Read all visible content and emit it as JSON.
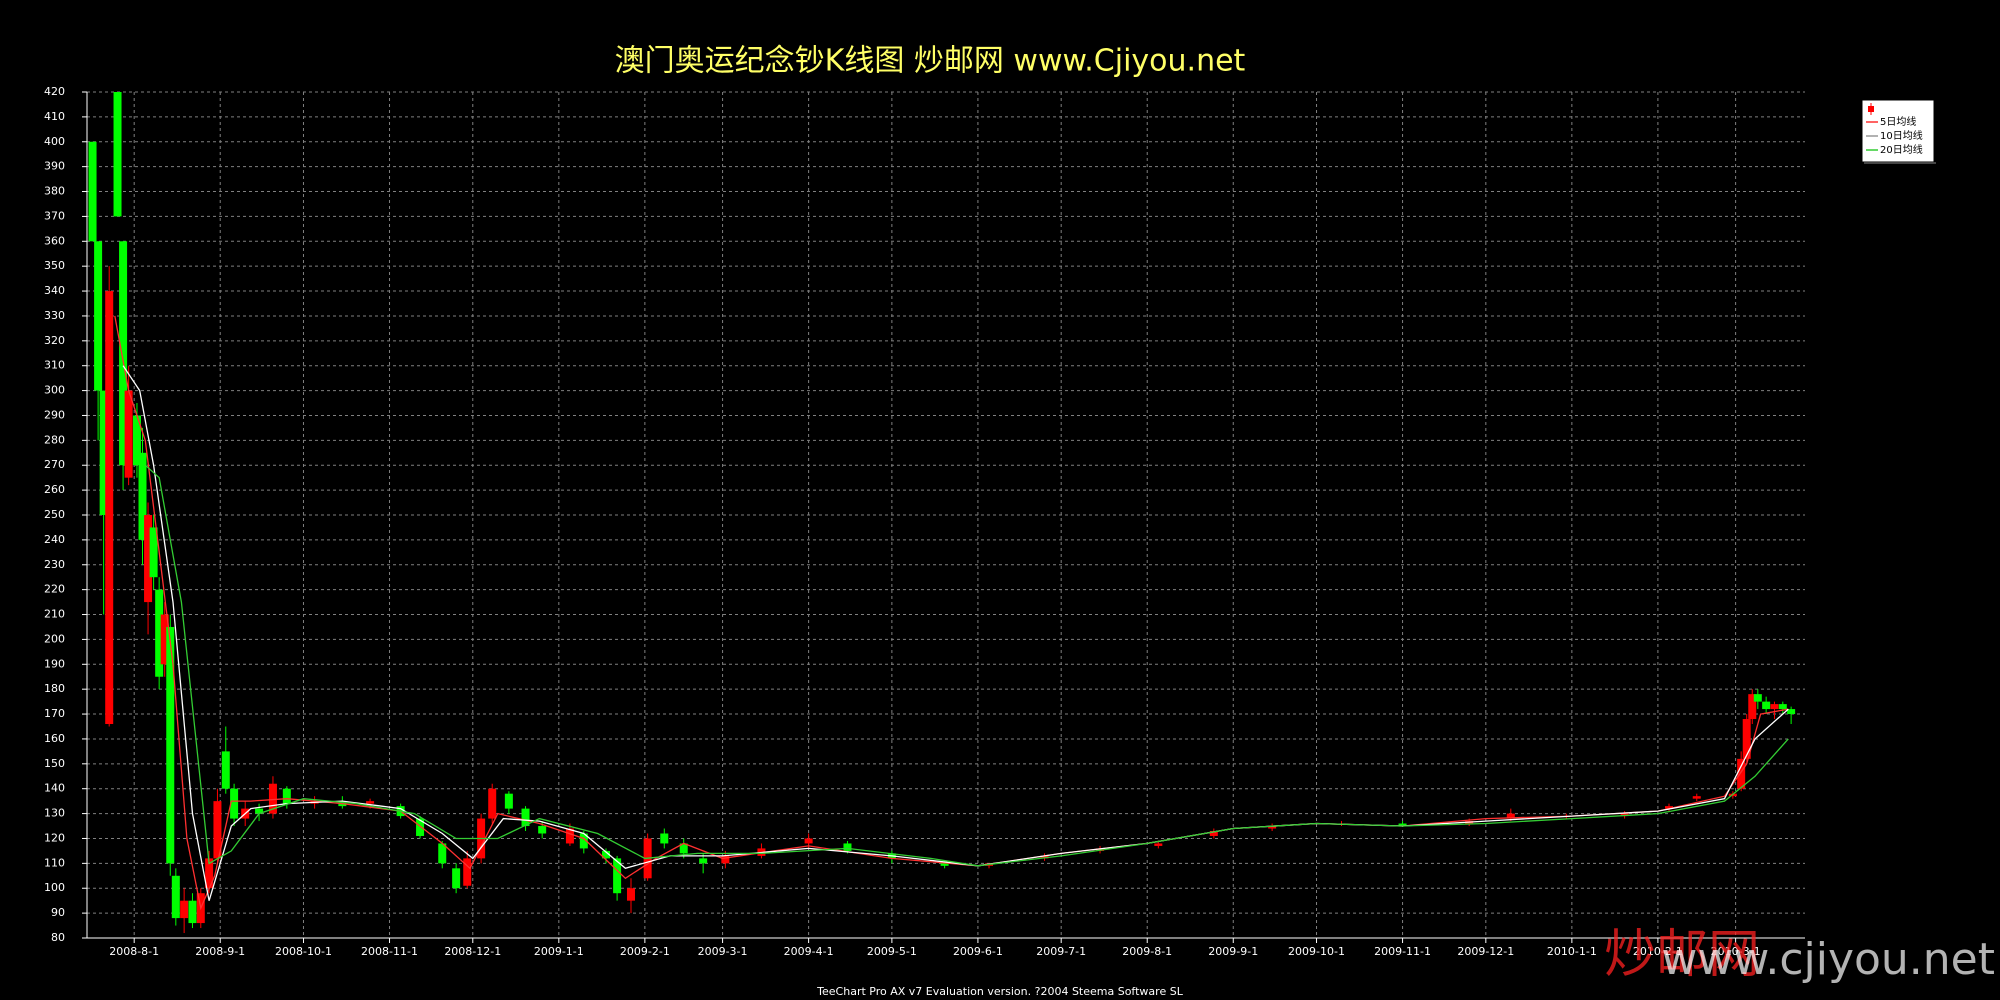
{
  "chart_data": {
    "type": "candlestick",
    "title": "澳门奥运纪念钞K线图  炒邮网 www.Cjiyou.net",
    "xlim": [
      "2008-7-15",
      "2010-3-26"
    ],
    "xticks": [
      "2008-8-1",
      "2008-9-1",
      "2008-10-1",
      "2008-11-1",
      "2008-12-1",
      "2009-1-1",
      "2009-2-1",
      "2009-3-1",
      "2009-4-1",
      "2009-5-1",
      "2009-6-1",
      "2009-7-1",
      "2009-8-1",
      "2009-9-1",
      "2009-10-1",
      "2009-11-1",
      "2009-12-1",
      "2010-1-1",
      "2010-2-1",
      "2010-3-1"
    ],
    "ylim": [
      80,
      420
    ],
    "yticks": [
      80,
      90,
      100,
      110,
      120,
      130,
      140,
      150,
      160,
      170,
      180,
      190,
      200,
      210,
      220,
      230,
      240,
      250,
      260,
      270,
      280,
      290,
      300,
      310,
      320,
      330,
      340,
      350,
      360,
      370,
      380,
      390,
      400,
      410,
      420
    ],
    "grid": true,
    "legend": "top-right",
    "up_color": "#ff0000",
    "down_color": "#00ff00",
    "candles": {
      "x": [
        "2008-7-17",
        "2008-7-19",
        "2008-7-21",
        "2008-7-23",
        "2008-7-26",
        "2008-7-28",
        "2008-7-30",
        "2008-8-2",
        "2008-8-4",
        "2008-8-6",
        "2008-8-8",
        "2008-8-10",
        "2008-8-12",
        "2008-8-14",
        "2008-8-16",
        "2008-8-19",
        "2008-8-22",
        "2008-8-25",
        "2008-8-28",
        "2008-8-31",
        "2008-9-3",
        "2008-9-6",
        "2008-9-10",
        "2008-9-15",
        "2008-9-20",
        "2008-9-25",
        "2008-10-5",
        "2008-10-15",
        "2008-10-25",
        "2008-11-5",
        "2008-11-12",
        "2008-11-20",
        "2008-11-25",
        "2008-11-29",
        "2008-12-4",
        "2008-12-8",
        "2008-12-14",
        "2008-12-20",
        "2008-12-26",
        "2009-1-5",
        "2009-1-10",
        "2009-1-18",
        "2009-1-22",
        "2009-1-27",
        "2009-2-2",
        "2009-2-8",
        "2009-2-15",
        "2009-2-22",
        "2009-3-2",
        "2009-3-15",
        "2009-4-1",
        "2009-4-15",
        "2009-5-1",
        "2009-5-20",
        "2009-6-5",
        "2009-6-25",
        "2009-7-15",
        "2009-8-5",
        "2009-8-25",
        "2009-9-15",
        "2009-10-10",
        "2009-11-1",
        "2009-11-25",
        "2009-12-10",
        "2009-12-30",
        "2010-1-20",
        "2010-2-5",
        "2010-2-15",
        "2010-2-28",
        "2010-3-3",
        "2010-3-5",
        "2010-3-7",
        "2010-3-9",
        "2010-3-12",
        "2010-3-15",
        "2010-3-18",
        "2010-3-21"
      ],
      "open": [
        400,
        360,
        300,
        166,
        420,
        360,
        265,
        290,
        275,
        215,
        245,
        220,
        190,
        205,
        105,
        88,
        95,
        86,
        100,
        112,
        155,
        140,
        128,
        132,
        130,
        140,
        134,
        135,
        134,
        133,
        128,
        118,
        108,
        101,
        112,
        128,
        138,
        132,
        125,
        118,
        122,
        115,
        112,
        95,
        104,
        122,
        118,
        112,
        110,
        113,
        118,
        118,
        114,
        110,
        109,
        112,
        115,
        117,
        121,
        124,
        126,
        126,
        126,
        128,
        129,
        129,
        132,
        136,
        137,
        140,
        152,
        168,
        178,
        175,
        172,
        174,
        172
      ],
      "high": [
        400,
        360,
        300,
        350,
        420,
        360,
        310,
        295,
        285,
        255,
        250,
        225,
        215,
        210,
        108,
        100,
        98,
        100,
        115,
        140,
        165,
        142,
        135,
        134,
        145,
        141,
        137,
        137,
        136,
        134,
        129,
        119,
        110,
        115,
        130,
        142,
        139,
        133,
        127,
        126,
        123,
        116,
        113,
        104,
        122,
        124,
        120,
        114,
        115,
        118,
        122,
        119,
        115,
        111,
        110,
        114,
        117,
        119,
        124,
        126,
        127,
        127,
        128,
        132,
        130,
        131,
        134,
        138,
        139,
        155,
        170,
        180,
        180,
        177,
        175,
        175,
        173
      ],
      "low": [
        360,
        280,
        210,
        165,
        370,
        260,
        262,
        265,
        230,
        202,
        220,
        180,
        185,
        105,
        85,
        82,
        84,
        84,
        98,
        110,
        138,
        125,
        125,
        127,
        128,
        132,
        132,
        132,
        132,
        128,
        120,
        108,
        98,
        100,
        110,
        126,
        130,
        123,
        120,
        117,
        114,
        110,
        95,
        90,
        103,
        116,
        112,
        106,
        108,
        112,
        116,
        114,
        110,
        108,
        108,
        111,
        114,
        116,
        120,
        123,
        125,
        125,
        125,
        127,
        128,
        128,
        131,
        135,
        136,
        139,
        150,
        166,
        172,
        170,
        168,
        170,
        166
      ],
      "close": [
        360,
        300,
        250,
        340,
        370,
        270,
        300,
        270,
        240,
        250,
        225,
        185,
        210,
        110,
        88,
        95,
        86,
        98,
        112,
        135,
        140,
        128,
        132,
        130,
        142,
        134,
        135,
        133,
        135,
        129,
        121,
        110,
        100,
        112,
        128,
        140,
        132,
        125,
        122,
        124,
        116,
        112,
        98,
        100,
        120,
        118,
        114,
        110,
        113,
        116,
        120,
        115,
        112,
        109,
        110,
        113,
        116,
        118,
        123,
        125,
        126,
        125,
        127,
        130,
        129,
        130,
        133,
        137,
        138,
        152,
        168,
        178,
        175,
        172,
        174,
        172,
        170
      ]
    },
    "series": [
      {
        "name": "5日均线",
        "color": "#ff3030",
        "x": [
          "2008-7-25",
          "2008-7-30",
          "2008-8-5",
          "2008-8-10",
          "2008-8-15",
          "2008-8-20",
          "2008-8-25",
          "2008-8-30",
          "2008-9-5",
          "2008-9-12",
          "2008-9-25",
          "2008-10-15",
          "2008-11-5",
          "2008-11-20",
          "2008-11-30",
          "2008-12-10",
          "2008-12-25",
          "2009-1-10",
          "2009-1-25",
          "2009-2-5",
          "2009-2-15",
          "2009-3-1",
          "2009-4-1",
          "2009-5-1",
          "2009-6-1",
          "2009-7-1",
          "2009-8-1",
          "2009-9-1",
          "2009-10-1",
          "2009-11-1",
          "2009-12-1",
          "2010-1-1",
          "2010-2-1",
          "2010-2-25",
          "2010-3-5",
          "2010-3-10",
          "2010-3-20"
        ],
        "values": [
          330,
          300,
          280,
          235,
          190,
          120,
          92,
          105,
          135,
          135,
          136,
          134,
          131,
          118,
          108,
          130,
          126,
          120,
          104,
          112,
          118,
          112,
          117,
          112,
          109,
          114,
          118,
          124,
          126,
          125,
          128,
          129,
          131,
          137,
          150,
          170,
          172
        ]
      },
      {
        "name": "10日均线",
        "color": "#ffffff",
        "x": [
          "2008-7-28",
          "2008-8-3",
          "2008-8-8",
          "2008-8-15",
          "2008-8-22",
          "2008-8-28",
          "2008-9-5",
          "2008-9-12",
          "2008-9-25",
          "2008-10-15",
          "2008-11-5",
          "2008-11-20",
          "2008-12-1",
          "2008-12-12",
          "2008-12-25",
          "2009-1-10",
          "2009-1-25",
          "2009-2-10",
          "2009-3-1",
          "2009-4-1",
          "2009-5-1",
          "2009-6-1",
          "2009-7-1",
          "2009-8-1",
          "2009-9-1",
          "2009-10-1",
          "2009-11-1",
          "2009-12-1",
          "2010-1-1",
          "2010-2-1",
          "2010-2-25",
          "2010-3-8",
          "2010-3-20"
        ],
        "values": [
          310,
          300,
          270,
          215,
          130,
          95,
          125,
          132,
          134,
          135,
          132,
          122,
          112,
          128,
          127,
          122,
          108,
          113,
          113,
          116,
          113,
          109,
          114,
          118,
          124,
          126,
          125,
          127,
          129,
          131,
          136,
          160,
          172
        ]
      },
      {
        "name": "20日均线",
        "color": "#33cc33",
        "x": [
          "2008-8-5",
          "2008-8-10",
          "2008-8-18",
          "2008-8-28",
          "2008-9-5",
          "2008-9-15",
          "2008-10-1",
          "2008-10-20",
          "2008-11-10",
          "2008-11-25",
          "2008-12-10",
          "2008-12-25",
          "2009-1-15",
          "2009-2-1",
          "2009-2-20",
          "2009-3-15",
          "2009-4-15",
          "2009-5-15",
          "2009-6-1",
          "2009-7-1",
          "2009-8-1",
          "2009-9-1",
          "2009-10-1",
          "2009-11-1",
          "2009-12-1",
          "2010-1-1",
          "2010-2-1",
          "2010-2-25",
          "2010-3-8",
          "2010-3-20"
        ],
        "values": [
          270,
          265,
          215,
          110,
          115,
          130,
          136,
          134,
          130,
          120,
          120,
          128,
          122,
          112,
          114,
          114,
          116,
          112,
          109,
          113,
          118,
          124,
          126,
          125,
          126,
          128,
          130,
          135,
          145,
          160
        ]
      }
    ]
  },
  "footer": "TeeChart Pro AX v7 Evaluation version. ?2004 Steema Software SL",
  "watermark": {
    "brand": "炒邮网",
    "url": "www.cjiyou.net"
  }
}
